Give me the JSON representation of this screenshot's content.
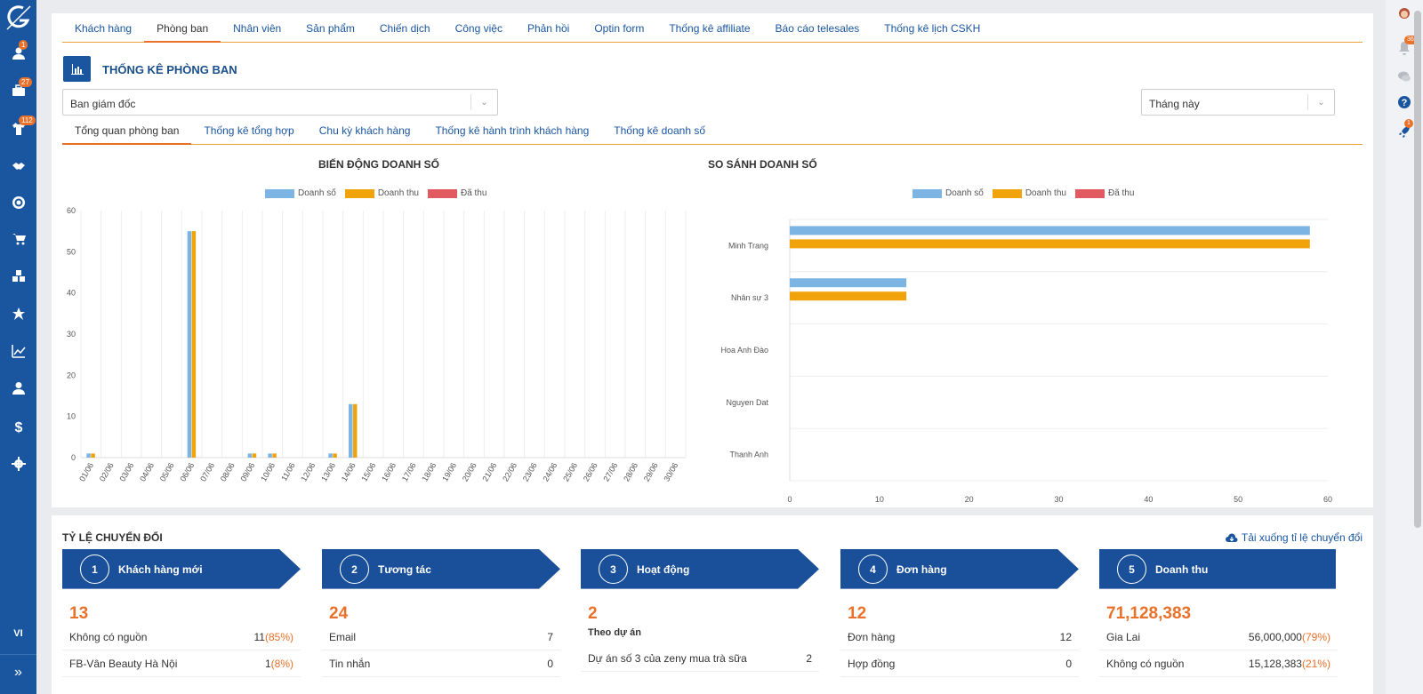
{
  "sidebar": {
    "items": [
      {
        "icon": "user-icon",
        "badge": "1"
      },
      {
        "icon": "briefcase-icon",
        "badge": "27"
      },
      {
        "icon": "shirt-icon",
        "badge": "112"
      },
      {
        "icon": "handshake-icon",
        "badge": ""
      },
      {
        "icon": "target-icon",
        "badge": ""
      },
      {
        "icon": "cart-icon",
        "badge": ""
      },
      {
        "icon": "cubes-icon",
        "badge": ""
      },
      {
        "icon": "star-icon",
        "badge": ""
      },
      {
        "icon": "line-chart-icon",
        "badge": ""
      },
      {
        "icon": "user-tie-icon",
        "badge": ""
      },
      {
        "icon": "dollar-icon",
        "badge": ""
      },
      {
        "icon": "gear-icon",
        "badge": ""
      }
    ],
    "lang": "VI",
    "expand": "»"
  },
  "rightrail": {
    "bell_badge": "364",
    "rocket_badge": "1"
  },
  "tabs": [
    "Khách hàng",
    "Phòng ban",
    "Nhân viên",
    "Sản phẩm",
    "Chiến dịch",
    "Công việc",
    "Phản hồi",
    "Optin form",
    "Thống kê affiliate",
    "Báo cáo telesales",
    "Thống kê lịch CSKH"
  ],
  "active_tab": 1,
  "page_title": "THỐNG KÊ PHÒNG BAN",
  "department_select": "Ban giám đốc",
  "period_select": "Tháng này",
  "subtabs": [
    "Tổng quan phòng ban",
    "Thống kê tổng hợp",
    "Chu kỳ khách hàng",
    "Thống kê hành trình khách hàng",
    "Thống kê doanh số"
  ],
  "active_subtab": 0,
  "colors": {
    "doanh_so": "#7cb5e4",
    "doanh_thu": "#f0a30a",
    "da_thu": "#e05a5f"
  },
  "chart_data": [
    {
      "type": "bar",
      "title": "BIẾN ĐỘNG DOANH SỐ",
      "categories": [
        "01/06",
        "02/06",
        "03/06",
        "04/06",
        "05/06",
        "06/06",
        "07/06",
        "08/06",
        "09/06",
        "10/06",
        "11/06",
        "12/06",
        "13/06",
        "14/06",
        "15/06",
        "16/06",
        "17/06",
        "18/06",
        "19/06",
        "20/06",
        "21/06",
        "22/06",
        "23/06",
        "24/06",
        "25/06",
        "26/06",
        "27/06",
        "28/06",
        "29/06",
        "30/06"
      ],
      "series": [
        {
          "name": "Doanh số",
          "values": [
            1,
            0,
            0,
            0,
            0,
            55,
            0,
            0,
            1,
            1,
            0,
            0,
            1,
            13,
            0,
            0,
            0,
            0,
            0,
            0,
            0,
            0,
            0,
            0,
            0,
            0,
            0,
            0,
            0,
            0
          ]
        },
        {
          "name": "Doanh thu",
          "values": [
            1,
            0,
            0,
            0,
            0,
            55,
            0,
            0,
            1,
            1,
            0,
            0,
            1,
            13,
            0,
            0,
            0,
            0,
            0,
            0,
            0,
            0,
            0,
            0,
            0,
            0,
            0,
            0,
            0,
            0
          ]
        },
        {
          "name": "Đã thu",
          "values": [
            0,
            0,
            0,
            0,
            0,
            0,
            0,
            0,
            0,
            0,
            0,
            0,
            0,
            0,
            0,
            0,
            0,
            0,
            0,
            0,
            0,
            0,
            0,
            0,
            0,
            0,
            0,
            0,
            0,
            0
          ]
        }
      ],
      "ylim": [
        0,
        60
      ],
      "yticks": [
        "0",
        "10",
        "20",
        "30",
        "40",
        "50",
        "60"
      ],
      "grid": true,
      "legend": "top-center"
    },
    {
      "type": "bar",
      "orientation": "horizontal",
      "title": "SO SÁNH DOANH SỐ",
      "categories": [
        "Minh Trang",
        "Nhân sự 3",
        "Hoa Anh Đào",
        "Nguyen Dat",
        "Thanh Anh"
      ],
      "series": [
        {
          "name": "Doanh số",
          "values": [
            58,
            13,
            0,
            0,
            0
          ]
        },
        {
          "name": "Doanh thu",
          "values": [
            58,
            13,
            0,
            0,
            0
          ]
        },
        {
          "name": "Đã thu",
          "values": [
            0,
            0,
            0,
            0,
            0
          ]
        }
      ],
      "xlim": [
        0,
        60
      ],
      "xticks": [
        "0",
        "10",
        "20",
        "30",
        "40",
        "50",
        "60"
      ],
      "grid": true,
      "legend": "top-center"
    }
  ],
  "conversion": {
    "title": "TỶ LỆ CHUYỂN ĐỔI",
    "download": "Tải xuống tỉ lệ chuyển đổi",
    "steps": [
      {
        "num": "1",
        "label": "Khách hàng mới",
        "total": "13",
        "rows": [
          {
            "name": "Không có nguồn",
            "value": "11",
            "pct": "(85%)"
          },
          {
            "name": "FB-Vân Beauty Hà Nội",
            "value": "1",
            "pct": "(8%)"
          }
        ]
      },
      {
        "num": "2",
        "label": "Tương tác",
        "total": "24",
        "rows": [
          {
            "name": "Email",
            "value": "7",
            "pct": ""
          },
          {
            "name": "Tin nhắn",
            "value": "0",
            "pct": ""
          }
        ]
      },
      {
        "num": "3",
        "label": "Hoạt động",
        "total": "2",
        "subheading": "Theo dự án",
        "rows": [
          {
            "name": "Dự án số 3 của zeny mua trà sữa",
            "value": "2",
            "pct": ""
          }
        ]
      },
      {
        "num": "4",
        "label": "Đơn hàng",
        "total": "12",
        "rows": [
          {
            "name": "Đơn hàng",
            "value": "12",
            "pct": ""
          },
          {
            "name": "Hợp đồng",
            "value": "0",
            "pct": ""
          }
        ]
      },
      {
        "num": "5",
        "label": "Doanh thu",
        "total": "71,128,383",
        "rows": [
          {
            "name": "Gia Lai",
            "value": "56,000,000",
            "pct": "(79%)"
          },
          {
            "name": "Không có nguồn",
            "value": "15,128,383",
            "pct": "(21%)"
          }
        ]
      }
    ]
  }
}
